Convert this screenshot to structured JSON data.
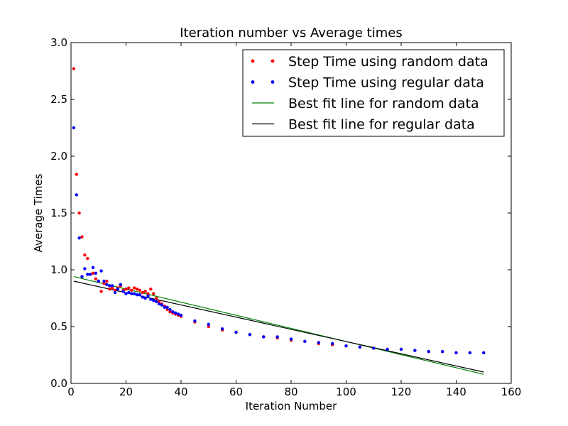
{
  "chart_data": {
    "type": "scatter",
    "title": "Iteration number vs Average times",
    "xlabel": "Iteration Number",
    "ylabel": "Average Times",
    "xlim": [
      0,
      160
    ],
    "ylim": [
      0.0,
      3.0
    ],
    "xticks": [
      "0",
      "20",
      "40",
      "60",
      "80",
      "100",
      "120",
      "140",
      "160"
    ],
    "yticks": [
      "0.0",
      "0.5",
      "1.0",
      "1.5",
      "2.0",
      "2.5",
      "3.0"
    ],
    "grid": false,
    "legend_position": "top-right",
    "series": [
      {
        "name": "Step Time using random data",
        "kind": "points",
        "color": "#ff0000",
        "x": [
          1,
          2,
          3,
          4,
          5,
          6,
          7,
          8,
          9,
          10,
          11,
          12,
          13,
          14,
          15,
          16,
          17,
          18,
          19,
          20,
          21,
          22,
          23,
          24,
          25,
          26,
          27,
          28,
          29,
          30,
          31,
          32,
          33,
          34,
          35,
          36,
          37,
          38,
          39,
          40,
          45,
          50,
          55,
          60,
          65,
          70,
          75,
          80,
          85,
          90,
          95,
          100,
          105,
          110,
          115,
          120,
          125,
          130,
          135,
          140,
          145,
          150
        ],
        "y": [
          2.77,
          1.84,
          1.5,
          1.29,
          1.13,
          1.1,
          0.96,
          0.97,
          0.92,
          0.9,
          0.81,
          0.88,
          0.9,
          0.83,
          0.84,
          0.82,
          0.84,
          0.86,
          0.82,
          0.83,
          0.84,
          0.82,
          0.84,
          0.83,
          0.82,
          0.8,
          0.81,
          0.79,
          0.83,
          0.79,
          0.75,
          0.72,
          0.7,
          0.68,
          0.65,
          0.63,
          0.62,
          0.61,
          0.6,
          0.59,
          0.54,
          0.5,
          0.47,
          0.45,
          0.43,
          0.41,
          0.4,
          0.38,
          0.37,
          0.35,
          0.34,
          0.33,
          0.32,
          0.31,
          0.3,
          0.3,
          0.29,
          0.28,
          0.28,
          0.27,
          0.27,
          0.27
        ]
      },
      {
        "name": "Step Time using regular data",
        "kind": "points",
        "color": "#0000ff",
        "x": [
          1,
          2,
          3,
          4,
          5,
          6,
          7,
          8,
          9,
          10,
          11,
          12,
          13,
          14,
          15,
          16,
          17,
          18,
          19,
          20,
          21,
          22,
          23,
          24,
          25,
          26,
          27,
          28,
          29,
          30,
          31,
          32,
          33,
          34,
          35,
          36,
          37,
          38,
          39,
          40,
          45,
          50,
          55,
          60,
          65,
          70,
          75,
          80,
          85,
          90,
          95,
          100,
          105,
          110,
          115,
          120,
          125,
          130,
          135,
          140,
          145,
          150
        ],
        "y": [
          2.25,
          1.66,
          1.28,
          0.94,
          1.01,
          0.96,
          0.96,
          1.02,
          0.97,
          0.9,
          0.99,
          0.9,
          0.87,
          0.86,
          0.86,
          0.8,
          0.83,
          0.87,
          0.81,
          0.79,
          0.8,
          0.79,
          0.79,
          0.78,
          0.78,
          0.76,
          0.75,
          0.77,
          0.74,
          0.73,
          0.72,
          0.7,
          0.69,
          0.67,
          0.67,
          0.65,
          0.63,
          0.62,
          0.61,
          0.6,
          0.55,
          0.52,
          0.48,
          0.45,
          0.43,
          0.41,
          0.41,
          0.39,
          0.37,
          0.36,
          0.35,
          0.33,
          0.32,
          0.31,
          0.3,
          0.3,
          0.29,
          0.28,
          0.28,
          0.27,
          0.27,
          0.27
        ]
      },
      {
        "name": "Best fit line for random data",
        "kind": "line",
        "color": "#008000",
        "x": [
          1,
          150
        ],
        "y": [
          0.94,
          0.08
        ]
      },
      {
        "name": "Best fit line for regular data",
        "kind": "line",
        "color": "#000000",
        "x": [
          1,
          150
        ],
        "y": [
          0.9,
          0.1
        ]
      }
    ]
  }
}
